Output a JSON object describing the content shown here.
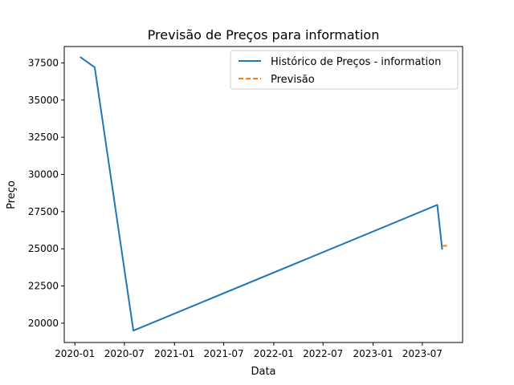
{
  "chart_data": {
    "type": "line",
    "title": "Previsão de Preços para information",
    "xlabel": "Data",
    "ylabel": "Preço",
    "x_axis_type": "date",
    "xlim": [
      "2019-11-23",
      "2023-11-26"
    ],
    "ylim": [
      18700,
      38600
    ],
    "x_ticks": [
      "2020-01",
      "2020-07",
      "2021-01",
      "2021-07",
      "2022-01",
      "2022-07",
      "2023-01",
      "2023-07"
    ],
    "y_ticks": [
      20000,
      22500,
      25000,
      27500,
      30000,
      32500,
      35000,
      37500
    ],
    "grid": false,
    "legend_position": "top-right",
    "series": [
      {
        "name": "Histórico de Preços - information",
        "color": "#1f77b4",
        "style": "solid",
        "points": [
          {
            "x": "2020-01-20",
            "y": 37900
          },
          {
            "x": "2020-03-14",
            "y": 37200
          },
          {
            "x": "2020-08-03",
            "y": 19500
          },
          {
            "x": "2023-08-25",
            "y": 27950
          },
          {
            "x": "2023-09-12",
            "y": 24950
          }
        ]
      },
      {
        "name": "Previsão",
        "color": "#ff7f0e",
        "style": "dashed",
        "points": [
          {
            "x": "2023-09-12",
            "y": 25200
          },
          {
            "x": "2023-10-08",
            "y": 25200
          }
        ]
      }
    ]
  }
}
